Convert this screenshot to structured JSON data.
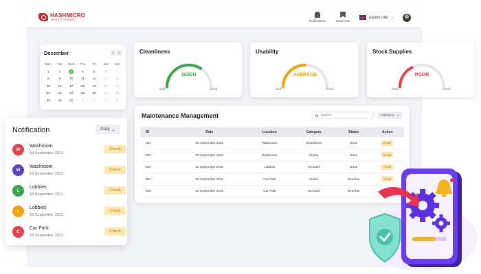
{
  "brand": {
    "name": "HASHMICRO",
    "tagline": "THINK FORWARD"
  },
  "header": {
    "notification_label": "Notifications",
    "bookmark_label": "Bookmark",
    "language": "English (UK)"
  },
  "calendar": {
    "month": "December",
    "prev": "‹",
    "next": "›",
    "weekdays": [
      "Mon",
      "Tue",
      "Wed",
      "Thu",
      "Fri",
      "Sat",
      "Sun"
    ],
    "weeks": [
      [
        "1",
        "2",
        "3",
        "4",
        "5",
        "6",
        "7"
      ],
      [
        "8",
        "9",
        "10",
        "11",
        "12",
        "13",
        "14"
      ],
      [
        "15",
        "16",
        "17",
        "18",
        "19",
        "20",
        "21"
      ],
      [
        "22",
        "23",
        "24",
        "25",
        "26",
        "27",
        "28"
      ],
      [
        "29",
        "30",
        "31",
        "1",
        "2",
        "3",
        "4"
      ]
    ],
    "today": "3"
  },
  "gauges": [
    {
      "title": "Cleanliness",
      "status": "GOOD",
      "color": "#3aa24a",
      "fill_fraction": 0.68,
      "bad_label": "Bad",
      "good_label": "Good"
    },
    {
      "title": "Usability",
      "status": "AVERAGE",
      "color": "#f4a30c",
      "fill_fraction": 0.5,
      "bad_label": "Bad",
      "good_label": "Good"
    },
    {
      "title": "Stock Supplies",
      "status": "POOR",
      "color": "#e0434b",
      "fill_fraction": 0.35,
      "bad_label": "Bad",
      "good_label": "Good"
    }
  ],
  "maintenance": {
    "title": "Maintenance Management",
    "search_placeholder": "Search",
    "category_label": "Category",
    "columns": [
      "ID",
      "Date",
      "Location",
      "Category",
      "Status",
      "Action"
    ],
    "rows": [
      {
        "id": "001",
        "date": "30 September 2016",
        "location": "Washroom",
        "category": "Cleanliness",
        "status": "Done",
        "action": "Detail"
      },
      {
        "id": "002",
        "date": "30 September 2016",
        "location": "Washroom",
        "category": "Choke",
        "status": "Done",
        "action": "Detail"
      },
      {
        "id": "003",
        "date": "30 September 2016",
        "location": "Lobbies",
        "category": "Too Dark",
        "status": "Done",
        "action": "Detail"
      },
      {
        "id": "004",
        "date": "30 September 2016",
        "location": "Car Park",
        "category": "Choke",
        "status": "Overdue",
        "action": "Detail"
      },
      {
        "id": "005",
        "date": "30 September 2016",
        "location": "Car Park",
        "category": "Too Dark",
        "status": "Overdue",
        "action": "Detail"
      }
    ]
  },
  "notification": {
    "title": "Notification",
    "filter": "Daily",
    "items": [
      {
        "initial": "W",
        "color": "#e0434b",
        "name": "Washroom",
        "date": "18 September 2021",
        "action": "Check"
      },
      {
        "initial": "W",
        "color": "#5b3fc4",
        "name": "Washroom",
        "date": "18 September 2021",
        "action": "Check"
      },
      {
        "initial": "L",
        "color": "#3aa24a",
        "name": "Lobbies",
        "date": "18 September 2021",
        "action": "Check"
      },
      {
        "initial": "L",
        "color": "#f4a30c",
        "name": "Lobbies",
        "date": "18 September 2021",
        "action": "Check"
      },
      {
        "initial": "C",
        "color": "#e0434b",
        "name": "Car Park",
        "date": "18 September 2021",
        "action": "Check"
      }
    ]
  },
  "colors": {
    "done": "#3aa24a",
    "overdue": "#d9353f",
    "accent": "#c8252c"
  }
}
